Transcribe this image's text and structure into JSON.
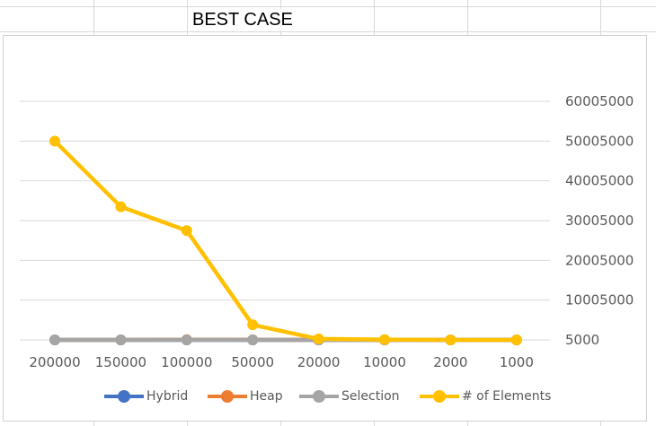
{
  "sheet": {
    "title": "BEST CASE"
  },
  "colors": {
    "Hybrid": "#4472c4",
    "Heap": "#ed7d31",
    "Selection": "#a5a5a5",
    "# of Elements": "#ffc000",
    "gridline": "#d9d9d9"
  },
  "chart_data": {
    "type": "line",
    "title": "",
    "xlabel": "",
    "ylabel": "",
    "categories": [
      "200000",
      "150000",
      "100000",
      "50000",
      "20000",
      "10000",
      "2000",
      "1000"
    ],
    "y_axis_position": "right",
    "y_ticks": [
      5000,
      10005000,
      20005000,
      30005000,
      40005000,
      50005000,
      60005000
    ],
    "ylim": [
      5000,
      60005000
    ],
    "grid": true,
    "legend_position": "bottom",
    "series": [
      {
        "name": "Hybrid",
        "values": [
          5000,
          5000,
          5000,
          5000,
          5000,
          5000,
          5000,
          5000
        ]
      },
      {
        "name": "Heap",
        "values": [
          19000,
          12000,
          60000,
          45000,
          5000,
          5000,
          5000,
          5000
        ]
      },
      {
        "name": "Selection",
        "values": [
          5000,
          5000,
          5000,
          5000,
          5000,
          5000,
          5000,
          5000
        ]
      },
      {
        "name": "# of Elements",
        "values": [
          50005000,
          33500000,
          27500000,
          3800000,
          250000,
          100000,
          10000,
          5000
        ]
      }
    ]
  }
}
